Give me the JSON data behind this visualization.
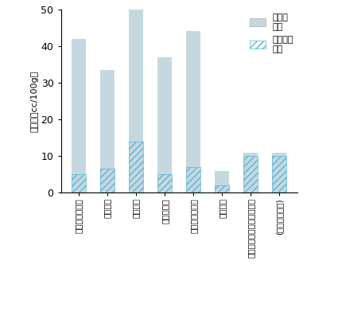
{
  "categories": [
    "高セルロース系",
    "チタニヤ",
    "塩素性系",
    "チタニヤ系",
    "イルミナイト系",
    "低水素系",
    "ステンレスオーステナイト",
    "(低水素系被覆)"
  ],
  "total": [
    42,
    33.5,
    50,
    37,
    44,
    6,
    11,
    11
  ],
  "non_diffusible": [
    5,
    6.5,
    14,
    5,
    7,
    2,
    10,
    10
  ],
  "bar_color": "#c5d8e0",
  "hatch_color": "#5ab4d6",
  "hatch_pattern": "////",
  "ylim": [
    0,
    50
  ],
  "yticks": [
    0,
    10,
    20,
    30,
    40,
    50
  ],
  "ylabel": "水素量（cc/100g）",
  "legend_diffusible": "拡散性\n水素",
  "legend_non_diffusible": "非拡散性\n水素",
  "background_color": "#ffffff",
  "bar_width": 0.5
}
